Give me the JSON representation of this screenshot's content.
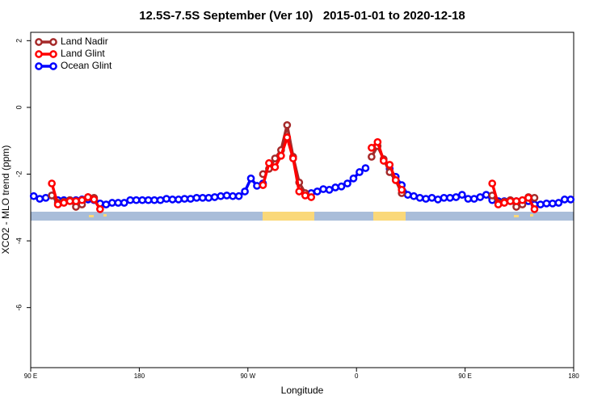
{
  "chart_data": {
    "type": "line",
    "title": "12.5S-7.5S September (Ver 10)   2015-01-01 to 2020-12-18",
    "xlabel": "Longitude",
    "ylabel": "XCO2 - MLO trend (ppm)",
    "xlim": [
      90,
      540
    ],
    "ylim": [
      -7.8,
      2.25
    ],
    "xticks": [
      {
        "value": 90,
        "label": "90 E"
      },
      180,
      {
        "value": 270,
        "label": "90 W"
      },
      {
        "value": 360,
        "label": "0"
      },
      {
        "value": 450,
        "label": "90 E"
      },
      {
        "value": 540,
        "label": "180"
      }
    ],
    "yticks": [
      -6,
      -4,
      -2,
      0,
      2
    ],
    "legend": "top-left",
    "x": [
      92.5,
      97.5,
      102.5,
      107.5,
      112.5,
      117.5,
      122.5,
      127.5,
      132.5,
      137.5,
      142.5,
      147.5,
      152.5,
      157.5,
      162.5,
      167.5,
      172.5,
      177.5,
      182.5,
      187.5,
      192.5,
      197.5,
      202.5,
      207.5,
      212.5,
      217.5,
      222.5,
      227.5,
      232.5,
      237.5,
      242.5,
      247.5,
      252.5,
      257.5,
      262.5,
      267.5,
      272.5,
      277.5,
      282.5,
      287.5,
      292.5,
      297.5,
      302.5,
      307.5,
      312.5,
      317.5,
      322.5,
      327.5,
      332.5,
      337.5,
      342.5,
      347.5,
      352.5,
      357.5,
      362.5,
      367.5,
      372.5,
      377.5,
      382.5,
      387.5,
      392.5,
      397.5,
      402.5,
      407.5,
      412.5,
      417.5,
      422.5,
      427.5,
      432.5,
      437.5,
      442.5,
      447.5,
      452.5,
      457.5,
      462.5,
      467.5,
      472.5,
      477.5,
      482.5,
      487.5,
      492.5,
      497.5,
      502.5,
      507.5,
      512.5,
      517.5,
      522.5,
      527.5,
      532.5,
      537.5
    ],
    "series": [
      {
        "name": "Land Nadir",
        "color": "#a52a2a",
        "values": [
          null,
          null,
          null,
          -2.64,
          -2.86,
          -2.83,
          -2.78,
          -2.98,
          -2.91,
          -2.69,
          -2.71,
          null,
          null,
          null,
          null,
          null,
          null,
          null,
          null,
          null,
          null,
          null,
          null,
          null,
          null,
          null,
          null,
          null,
          null,
          null,
          null,
          null,
          null,
          null,
          null,
          null,
          null,
          null,
          -2.0,
          -1.84,
          -1.53,
          -1.28,
          -0.53,
          -1.48,
          -2.25,
          -2.57,
          null,
          null,
          null,
          null,
          null,
          null,
          null,
          null,
          null,
          null,
          -1.48,
          -1.16,
          -1.55,
          -1.94,
          -2.18,
          -2.57,
          null,
          null,
          null,
          null,
          null,
          null,
          null,
          null,
          null,
          null,
          null,
          null,
          null,
          null,
          -2.64,
          -2.86,
          -2.83,
          -2.78,
          -2.98,
          -2.91,
          -2.69,
          -2.71,
          null,
          null,
          null,
          null,
          null,
          null
        ]
      },
      {
        "name": "Land Glint",
        "color": "#ff0000",
        "values": [
          null,
          null,
          null,
          -2.28,
          -2.91,
          -2.86,
          -2.81,
          -2.81,
          -2.78,
          -2.69,
          -2.76,
          -3.05,
          null,
          null,
          null,
          null,
          null,
          null,
          null,
          null,
          null,
          null,
          null,
          null,
          null,
          null,
          null,
          null,
          null,
          null,
          null,
          null,
          null,
          null,
          null,
          null,
          null,
          null,
          -2.33,
          -1.67,
          -1.79,
          -1.45,
          -0.9,
          -1.53,
          -2.52,
          -2.64,
          -2.69,
          null,
          null,
          null,
          null,
          null,
          null,
          null,
          null,
          null,
          -1.21,
          -1.04,
          -1.6,
          -1.72,
          -2.18,
          -2.47,
          null,
          null,
          null,
          null,
          null,
          null,
          null,
          null,
          null,
          null,
          null,
          null,
          null,
          null,
          -2.28,
          -2.91,
          -2.86,
          -2.81,
          -2.81,
          -2.78,
          -2.71,
          -3.05,
          null,
          null,
          null,
          null,
          null,
          null
        ]
      },
      {
        "name": "Ocean Glint",
        "color": "#0000ff",
        "values": [
          -2.66,
          -2.74,
          -2.71,
          -2.64,
          -2.78,
          -2.78,
          -2.78,
          -2.78,
          -2.76,
          -2.76,
          -2.78,
          -2.88,
          -2.91,
          -2.86,
          -2.86,
          -2.86,
          -2.78,
          -2.78,
          -2.78,
          -2.78,
          -2.78,
          -2.78,
          -2.74,
          -2.76,
          -2.76,
          -2.74,
          -2.74,
          -2.71,
          -2.71,
          -2.71,
          -2.69,
          -2.66,
          -2.64,
          -2.66,
          -2.66,
          -2.52,
          -2.13,
          -2.35,
          -2.28,
          null,
          null,
          null,
          null,
          null,
          null,
          null,
          -2.57,
          -2.52,
          -2.45,
          -2.47,
          -2.4,
          -2.37,
          -2.28,
          -2.13,
          -1.94,
          -1.82,
          null,
          null,
          null,
          -1.84,
          -2.08,
          -2.33,
          -2.62,
          -2.66,
          -2.71,
          -2.74,
          -2.71,
          -2.76,
          -2.71,
          -2.71,
          -2.69,
          -2.62,
          -2.74,
          -2.74,
          -2.69,
          -2.62,
          -2.78,
          -2.81,
          -2.81,
          -2.81,
          -2.81,
          -2.81,
          -2.81,
          -2.91,
          -2.91,
          -2.88,
          -2.88,
          -2.86,
          -2.76,
          -2.76
        ]
      }
    ]
  }
}
